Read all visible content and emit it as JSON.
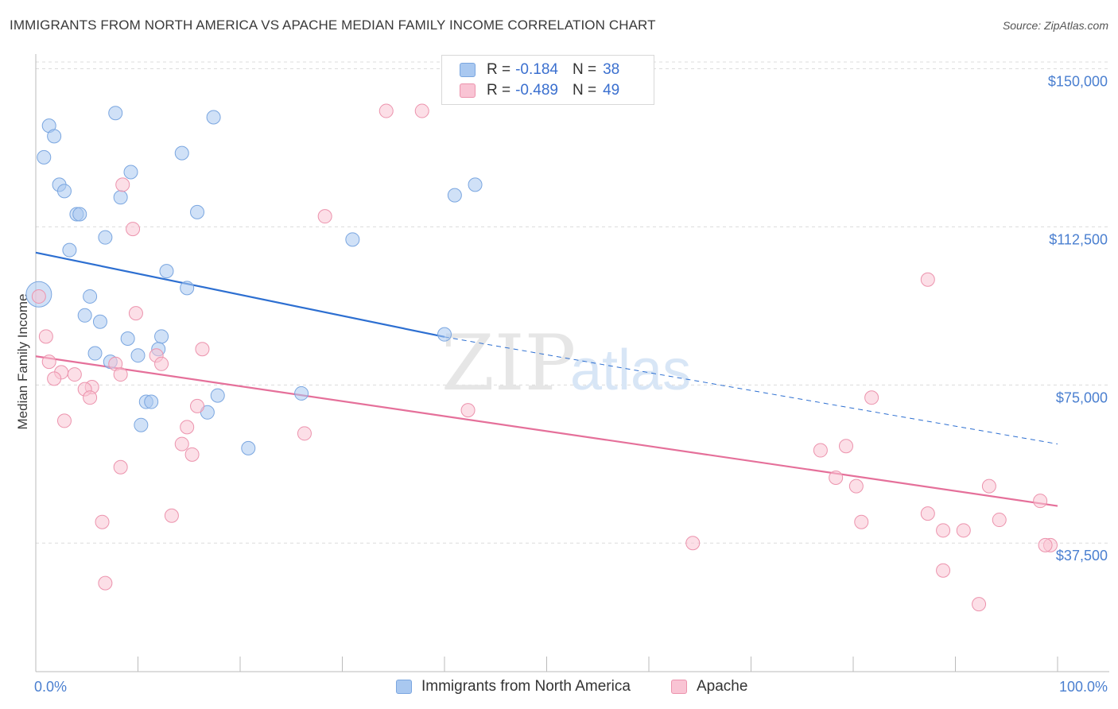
{
  "header": {
    "title": "IMMIGRANTS FROM NORTH AMERICA VS APACHE MEDIAN FAMILY INCOME CORRELATION CHART",
    "source": "Source: ZipAtlas.com"
  },
  "legend": {
    "rows": [
      {
        "r_label": "R =",
        "r_value": "-0.184",
        "n_label": "N =",
        "n_value": "38",
        "color": "#a9c8f0",
        "border": "#7aa6e0"
      },
      {
        "r_label": "R =",
        "r_value": "-0.489",
        "n_label": "N =",
        "n_value": "49",
        "color": "#f9c4d4",
        "border": "#ec93ad"
      }
    ]
  },
  "bottom_legend": {
    "items": [
      {
        "label": "Immigrants from North America",
        "color": "#a9c8f0",
        "border": "#7aa6e0"
      },
      {
        "label": "Apache",
        "color": "#f9c4d4",
        "border": "#ec93ad"
      }
    ]
  },
  "watermark": {
    "zip": "ZIP",
    "atlas": "atlas"
  },
  "chart_data": {
    "type": "scatter",
    "title": "IMMIGRANTS FROM NORTH AMERICA VS APACHE MEDIAN FAMILY INCOME CORRELATION CHART",
    "xlabel": "",
    "ylabel": "Median Family Income",
    "x_tick_labels": [
      "0.0%",
      "100.0%"
    ],
    "y_ticks": [
      37500,
      75000,
      112500,
      150000
    ],
    "y_tick_labels": [
      "$37,500",
      "$75,000",
      "$112,500",
      "$150,000"
    ],
    "xlim": [
      0,
      100
    ],
    "ylim": [
      7000,
      155000
    ],
    "grid": true,
    "series": [
      {
        "name": "Immigrants from North America",
        "color": "#a9c8f0",
        "stroke": "#7aa6e0",
        "trend_color": "#2d6fd1",
        "trend": {
          "x0": 0,
          "y0": 106400,
          "x1": 40,
          "y1": 86400,
          "dashed_to_x": 100,
          "dashed_to_y": 61000
        },
        "points": [
          [
            0.3,
            96500
          ],
          [
            1.3,
            136500
          ],
          [
            1.8,
            134000
          ],
          [
            0.8,
            129000
          ],
          [
            2.3,
            122500
          ],
          [
            2.8,
            121000
          ],
          [
            7.8,
            139500
          ],
          [
            17.4,
            138500
          ],
          [
            14.3,
            130000
          ],
          [
            9.3,
            125500
          ],
          [
            8.3,
            119500
          ],
          [
            4.0,
            115500
          ],
          [
            4.3,
            115500
          ],
          [
            15.8,
            116000
          ],
          [
            6.8,
            110000
          ],
          [
            3.3,
            107000
          ],
          [
            12.8,
            102000
          ],
          [
            14.8,
            98000
          ],
          [
            5.3,
            96000
          ],
          [
            4.8,
            91500
          ],
          [
            6.3,
            90000
          ],
          [
            9.0,
            86000
          ],
          [
            12.3,
            86500
          ],
          [
            10.0,
            82000
          ],
          [
            12.0,
            83500
          ],
          [
            5.8,
            82500
          ],
          [
            7.3,
            80500
          ],
          [
            17.8,
            72500
          ],
          [
            10.8,
            71000
          ],
          [
            11.3,
            71000
          ],
          [
            16.8,
            68500
          ],
          [
            10.3,
            65500
          ],
          [
            20.8,
            60000
          ],
          [
            26.0,
            73000
          ],
          [
            41.0,
            120000
          ],
          [
            43.0,
            122500
          ],
          [
            40.0,
            87000
          ],
          [
            31.0,
            109500
          ]
        ]
      },
      {
        "name": "Apache",
        "color": "#f9c4d4",
        "stroke": "#ec93ad",
        "trend_color": "#e5709a",
        "trend": {
          "x0": 0,
          "y0": 81800,
          "x1": 100,
          "y1": 46300
        },
        "points": [
          [
            0.3,
            96000
          ],
          [
            1.0,
            86500
          ],
          [
            1.3,
            80500
          ],
          [
            2.5,
            78000
          ],
          [
            1.8,
            76500
          ],
          [
            3.8,
            77500
          ],
          [
            5.5,
            74500
          ],
          [
            4.8,
            74000
          ],
          [
            5.3,
            72000
          ],
          [
            2.8,
            66500
          ],
          [
            8.3,
            55500
          ],
          [
            6.5,
            42500
          ],
          [
            6.8,
            28000
          ],
          [
            7.8,
            80000
          ],
          [
            8.3,
            77500
          ],
          [
            9.5,
            112000
          ],
          [
            8.5,
            122500
          ],
          [
            9.8,
            92000
          ],
          [
            11.8,
            82000
          ],
          [
            12.3,
            80000
          ],
          [
            16.3,
            83500
          ],
          [
            15.8,
            70000
          ],
          [
            14.8,
            65000
          ],
          [
            14.3,
            61000
          ],
          [
            15.3,
            58500
          ],
          [
            13.3,
            44000
          ],
          [
            28.3,
            115000
          ],
          [
            26.3,
            63500
          ],
          [
            34.3,
            140000
          ],
          [
            37.8,
            140000
          ],
          [
            42.3,
            69000
          ],
          [
            64.3,
            37500
          ],
          [
            76.8,
            59500
          ],
          [
            78.3,
            53000
          ],
          [
            79.3,
            60500
          ],
          [
            80.3,
            51000
          ],
          [
            80.8,
            42500
          ],
          [
            81.8,
            72000
          ],
          [
            87.3,
            100000
          ],
          [
            87.3,
            44500
          ],
          [
            88.8,
            40500
          ],
          [
            88.8,
            31000
          ],
          [
            90.8,
            40500
          ],
          [
            92.3,
            23000
          ],
          [
            93.3,
            51000
          ],
          [
            94.3,
            43000
          ],
          [
            98.3,
            47500
          ],
          [
            99.3,
            37000
          ],
          [
            98.8,
            37000
          ]
        ]
      }
    ]
  }
}
